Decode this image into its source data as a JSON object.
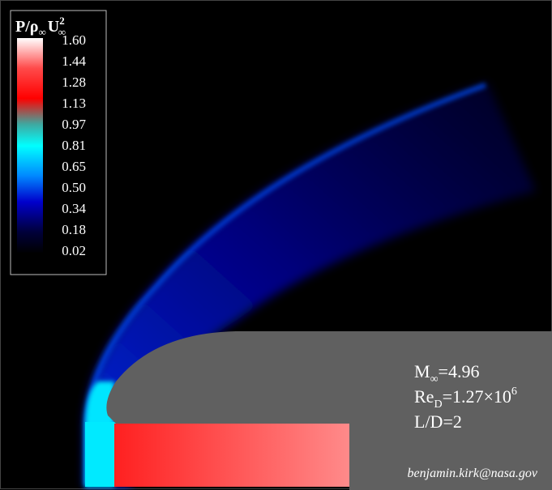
{
  "legend": {
    "title_main": "P/ρ",
    "title_sub1": "∞",
    "title_u": "U",
    "title_sup": "2",
    "title_sub2": "∞",
    "ticks": [
      "1.60",
      "1.44",
      "1.28",
      "1.13",
      "0.97",
      "0.81",
      "0.65",
      "0.50",
      "0.34",
      "0.18",
      "0.02"
    ],
    "colors": [
      "#ffffff",
      "#ff2a2a",
      "#ff0000",
      "#3fb0a8",
      "#00ffff",
      "#0080ff",
      "#0000c8",
      "#000033"
    ]
  },
  "annotation": {
    "mach_main": "M",
    "mach_sub": "∞",
    "mach_value": "=4.96",
    "re_main": "Re",
    "re_sub": "D",
    "re_value": "=1.27×10",
    "re_exp": "6",
    "ld": "L/D=2"
  },
  "credit": "benjamin.kirk@nasa.gov"
}
